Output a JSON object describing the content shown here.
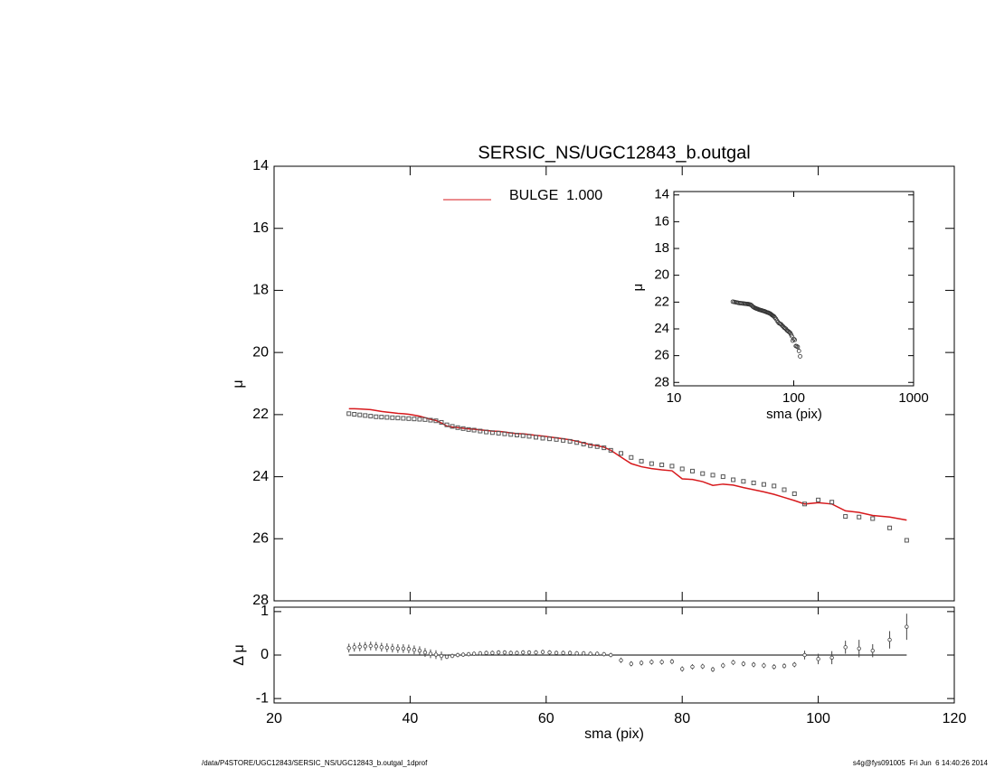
{
  "chart_data": [
    {
      "type": "scatter",
      "title": "SERSIC_NS/UGC12843_b.outgal",
      "ylabel": "μ",
      "xlim": [
        20,
        120
      ],
      "xticks": [
        20,
        40,
        60,
        80,
        100,
        120
      ],
      "ylim": [
        28,
        14
      ],
      "yticks": [
        14,
        16,
        18,
        20,
        22,
        24,
        26,
        28
      ],
      "color": "#555555",
      "x": [
        31,
        31.8,
        32.6,
        33.4,
        34.2,
        35,
        35.8,
        36.6,
        37.4,
        38.2,
        39,
        39.8,
        40.6,
        41.4,
        42.2,
        43,
        43.8,
        44.6,
        45.4,
        46.2,
        47,
        47.8,
        48.6,
        49.4,
        50.3,
        51.2,
        52.1,
        53,
        53.9,
        54.8,
        55.7,
        56.6,
        57.5,
        58.5,
        59.5,
        60.5,
        61.5,
        62.5,
        63.5,
        64.5,
        65.5,
        66.5,
        67.5,
        68.5,
        69.5,
        71,
        72.5,
        74,
        75.5,
        77,
        78.5,
        80,
        81.5,
        83,
        84.5,
        86,
        87.5,
        89,
        90.5,
        92,
        93.5,
        95,
        96.5,
        98,
        100,
        102,
        104,
        106,
        108,
        110.5,
        113
      ],
      "values": [
        21.97,
        21.99,
        22.01,
        22.03,
        22.05,
        22.07,
        22.08,
        22.09,
        22.1,
        22.11,
        22.12,
        22.13,
        22.14,
        22.15,
        22.16,
        22.18,
        22.2,
        22.25,
        22.33,
        22.38,
        22.42,
        22.45,
        22.48,
        22.5,
        22.53,
        22.56,
        22.58,
        22.6,
        22.62,
        22.64,
        22.66,
        22.68,
        22.7,
        22.73,
        22.76,
        22.78,
        22.8,
        22.83,
        22.86,
        22.9,
        22.95,
        23.0,
        23.03,
        23.07,
        23.15,
        23.25,
        23.38,
        23.5,
        23.58,
        23.62,
        23.66,
        23.75,
        23.82,
        23.9,
        23.95,
        24.0,
        24.1,
        24.15,
        24.2,
        24.25,
        24.3,
        24.42,
        24.55,
        24.88,
        24.75,
        24.82,
        25.28,
        25.3,
        25.35,
        25.65,
        26.05
      ],
      "series": [
        {
          "name": "BULGE  1.000",
          "color": "#d7191c",
          "values": [
            21.81,
            21.81,
            21.82,
            21.83,
            21.84,
            21.87,
            21.9,
            21.92,
            21.94,
            21.96,
            21.97,
            21.99,
            22.02,
            22.05,
            22.1,
            22.15,
            22.19,
            22.27,
            22.37,
            22.4,
            22.42,
            22.44,
            22.46,
            22.47,
            22.49,
            22.51,
            22.53,
            22.54,
            22.56,
            22.59,
            22.61,
            22.62,
            22.64,
            22.67,
            22.69,
            22.72,
            22.75,
            22.78,
            22.81,
            22.86,
            22.91,
            22.97,
            23.0,
            23.05,
            23.15,
            23.37,
            23.58,
            23.68,
            23.74,
            23.78,
            23.81,
            24.07,
            24.09,
            24.16,
            24.28,
            24.24,
            24.27,
            24.35,
            24.42,
            24.49,
            24.57,
            24.67,
            24.77,
            24.88,
            24.84,
            24.88,
            25.1,
            25.15,
            25.25,
            25.3,
            25.4
          ]
        }
      ]
    },
    {
      "type": "scatter",
      "xscale": "log",
      "xlabel": "sma (pix)",
      "ylabel": "μ",
      "xlim": [
        10,
        1000
      ],
      "xticks": [
        10,
        100,
        1000
      ],
      "ylim": [
        28.25,
        13.75
      ],
      "yticks": [
        14,
        16,
        18,
        20,
        22,
        24,
        26,
        28
      ]
    },
    {
      "type": "errorbar",
      "xlabel": "sma (pix)",
      "ylabel": "Δ μ",
      "xlim": [
        20,
        120
      ],
      "xticks": [
        20,
        40,
        60,
        80,
        100,
        120
      ],
      "ylim": [
        -1.1,
        1.1
      ],
      "yticks": [
        -1,
        0,
        1
      ],
      "values": [
        0.16,
        0.18,
        0.19,
        0.2,
        0.21,
        0.2,
        0.18,
        0.17,
        0.16,
        0.15,
        0.15,
        0.14,
        0.12,
        0.1,
        0.06,
        0.03,
        0.01,
        -0.02,
        -0.04,
        -0.02,
        0,
        0.01,
        0.02,
        0.03,
        0.04,
        0.05,
        0.05,
        0.06,
        0.06,
        0.05,
        0.05,
        0.06,
        0.06,
        0.06,
        0.07,
        0.06,
        0.05,
        0.05,
        0.05,
        0.04,
        0.04,
        0.03,
        0.03,
        0.02,
        0,
        -0.12,
        -0.2,
        -0.18,
        -0.16,
        -0.16,
        -0.15,
        -0.32,
        -0.27,
        -0.26,
        -0.33,
        -0.24,
        -0.17,
        -0.2,
        -0.22,
        -0.24,
        -0.27,
        -0.25,
        -0.22,
        0,
        -0.09,
        -0.06,
        0.18,
        0.15,
        0.1,
        0.35,
        0.65
      ],
      "errors": [
        0.1,
        0.1,
        0.1,
        0.1,
        0.1,
        0.1,
        0.1,
        0.1,
        0.1,
        0.1,
        0.1,
        0.1,
        0.1,
        0.1,
        0.1,
        0.1,
        0.1,
        0.1,
        0.05,
        0.05,
        0.05,
        0.05,
        0.05,
        0.05,
        0.05,
        0.05,
        0.05,
        0.05,
        0.05,
        0.05,
        0.05,
        0.05,
        0.05,
        0.05,
        0.05,
        0.05,
        0.05,
        0.05,
        0.05,
        0.05,
        0.05,
        0.05,
        0.05,
        0.05,
        0.05,
        0.06,
        0.06,
        0.06,
        0.06,
        0.06,
        0.06,
        0.06,
        0.06,
        0.06,
        0.06,
        0.06,
        0.06,
        0.06,
        0.06,
        0.06,
        0.06,
        0.06,
        0.06,
        0.1,
        0.12,
        0.15,
        0.15,
        0.2,
        0.15,
        0.2,
        0.3
      ]
    }
  ],
  "footer": {
    "left": "/data/P4STORE/UGC12843/SERSIC_NS/UGC12843_b.outgal_1dprof",
    "right": "s4g@fys091005  Fri Jun  6 14:40:26 2014"
  }
}
